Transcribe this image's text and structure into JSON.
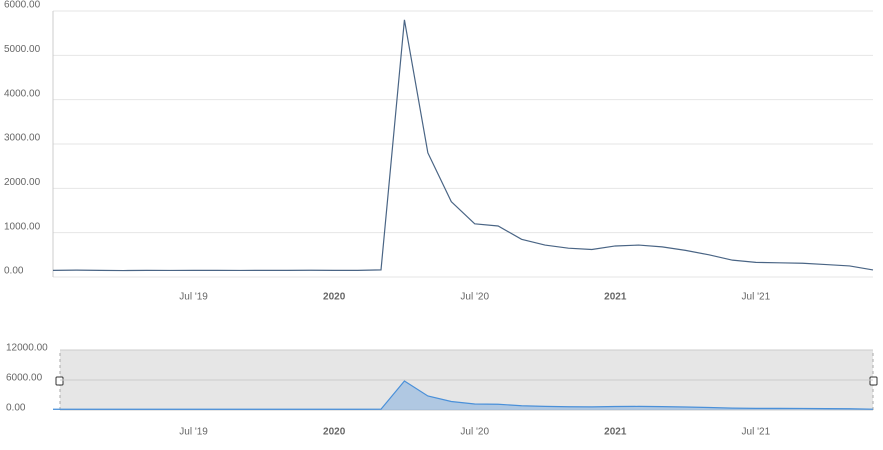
{
  "chart_data": {
    "type": "line",
    "x": [
      "2019-01",
      "2019-02",
      "2019-03",
      "2019-04",
      "2019-05",
      "2019-06",
      "2019-07",
      "2019-08",
      "2019-09",
      "2019-10",
      "2019-11",
      "2019-12",
      "2020-01",
      "2020-02",
      "2020-03",
      "2020-04",
      "2020-05",
      "2020-06",
      "2020-07",
      "2020-08",
      "2020-09",
      "2020-10",
      "2020-11",
      "2020-12",
      "2021-01",
      "2021-02",
      "2021-03",
      "2021-04",
      "2021-05",
      "2021-06",
      "2021-07",
      "2021-08",
      "2021-09",
      "2021-10",
      "2021-11",
      "2021-12"
    ],
    "series": [
      {
        "color": "#4a6585",
        "values": [
          150,
          155,
          150,
          145,
          150,
          148,
          150,
          150,
          148,
          150,
          150,
          152,
          150,
          150,
          160,
          5800,
          2800,
          1700,
          1200,
          1150,
          850,
          720,
          650,
          620,
          700,
          720,
          680,
          600,
          500,
          380,
          330,
          320,
          310,
          280,
          250,
          160
        ]
      }
    ],
    "xlim": [
      "2019-01",
      "2021-12"
    ],
    "xticks": [
      {
        "value": "2019-07",
        "label": "Jul '19"
      },
      {
        "value": "2020-01",
        "label": "2020"
      },
      {
        "value": "2020-07",
        "label": "Jul '20"
      },
      {
        "value": "2021-01",
        "label": "2021"
      },
      {
        "value": "2021-07",
        "label": "Jul '21"
      }
    ],
    "ylim": [
      0,
      6000
    ],
    "yticks": [
      {
        "value": 0,
        "label": "0.00"
      },
      {
        "value": 1000,
        "label": "1000.00"
      },
      {
        "value": 2000,
        "label": "2000.00"
      },
      {
        "value": 3000,
        "label": "3000.00"
      },
      {
        "value": 4000,
        "label": "4000.00"
      },
      {
        "value": 5000,
        "label": "5000.00"
      },
      {
        "value": 6000,
        "label": "6000.00"
      }
    ],
    "grid": true,
    "navigator": {
      "color": "#4a90d9",
      "ylim": [
        0,
        12000
      ],
      "yticks": [
        {
          "value": 0,
          "label": "0.00"
        },
        {
          "value": 6000,
          "label": "6000.00"
        },
        {
          "value": 12000,
          "label": "12000.00"
        }
      ]
    }
  }
}
